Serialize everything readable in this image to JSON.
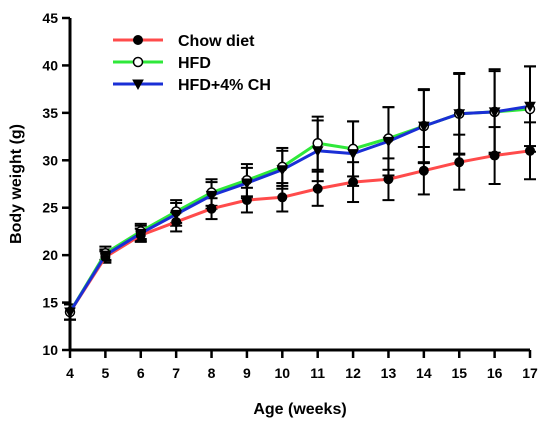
{
  "chart_data": {
    "type": "line",
    "xlabel": "Age (weeks)",
    "ylabel": "Body weight (g)",
    "xlim": [
      4,
      17
    ],
    "ylim": [
      10,
      45
    ],
    "xticks": [
      4,
      5,
      6,
      7,
      8,
      9,
      10,
      11,
      12,
      13,
      14,
      15,
      16,
      17
    ],
    "yticks": [
      10,
      15,
      20,
      25,
      30,
      35,
      40,
      45
    ],
    "grid": false,
    "legend_position": "top-left",
    "x": [
      4,
      5,
      6,
      7,
      8,
      9,
      10,
      11,
      12,
      13,
      14,
      15,
      16,
      17
    ],
    "series": [
      {
        "name": "Chow diet",
        "color": "#ff4b4b",
        "marker": "filled-circle",
        "values": [
          14.0,
          19.8,
          22.1,
          23.5,
          24.9,
          25.8,
          26.1,
          27.0,
          27.7,
          28.0,
          28.9,
          29.8,
          30.5,
          31.0
        ],
        "errors": [
          0.8,
          0.6,
          0.7,
          1.0,
          1.1,
          1.3,
          1.5,
          1.8,
          2.1,
          2.2,
          2.5,
          2.9,
          3.0,
          3.0
        ]
      },
      {
        "name": "HFD",
        "color": "#2fe83a",
        "marker": "open-circle",
        "values": [
          14.0,
          20.2,
          22.5,
          24.6,
          26.6,
          27.9,
          29.3,
          31.8,
          31.2,
          32.3,
          33.6,
          34.9,
          35.1,
          35.4
        ],
        "errors": [
          0.8,
          0.7,
          0.8,
          1.2,
          1.4,
          1.7,
          2.0,
          2.8,
          2.9,
          3.3,
          3.8,
          4.2,
          4.3,
          4.5
        ]
      },
      {
        "name": "HFD+4% CH",
        "color": "#1a2fd6",
        "marker": "filled-triangle-down",
        "values": [
          14.0,
          20.0,
          22.3,
          24.3,
          26.3,
          27.6,
          29.0,
          31.0,
          30.7,
          32.0,
          33.6,
          34.9,
          35.1,
          35.7
        ],
        "errors": [
          0.8,
          0.6,
          0.8,
          1.2,
          1.4,
          1.6,
          2.0,
          3.2,
          3.4,
          3.6,
          3.9,
          4.3,
          4.5,
          4.2
        ]
      }
    ]
  }
}
